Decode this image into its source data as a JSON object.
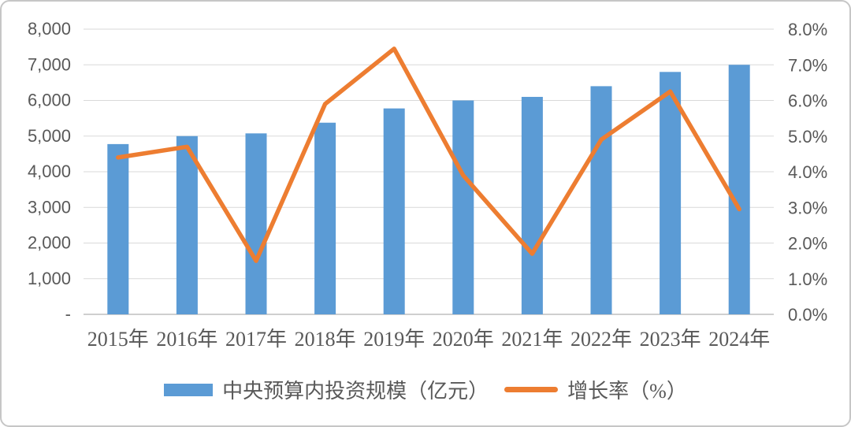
{
  "chart_data": {
    "type": "combo",
    "title": "",
    "categories": [
      "2015年",
      "2016年",
      "2017年",
      "2018年",
      "2019年",
      "2020年",
      "2021年",
      "2022年",
      "2023年",
      "2024年"
    ],
    "series": [
      {
        "name": "中央预算内投资规模（亿元）",
        "type": "bar",
        "axis": "left",
        "values": [
          4776,
          5000,
          5076,
          5376,
          5776,
          6000,
          6100,
          6400,
          6800,
          7000
        ]
      },
      {
        "name": "增长率（%）",
        "type": "line",
        "axis": "right",
        "values": [
          4.4,
          4.7,
          1.5,
          5.9,
          7.45,
          3.9,
          1.7,
          4.9,
          6.25,
          2.95
        ]
      }
    ],
    "left_axis": {
      "min": 0,
      "max": 8000,
      "step": 1000,
      "tick_labels": [
        "-",
        "1,000",
        "2,000",
        "3,000",
        "4,000",
        "5,000",
        "6,000",
        "7,000",
        "8,000"
      ]
    },
    "right_axis": {
      "min": 0,
      "max": 8,
      "step": 1,
      "tick_labels": [
        "0.0%",
        "1.0%",
        "2.0%",
        "3.0%",
        "4.0%",
        "5.0%",
        "6.0%",
        "7.0%",
        "8.0%"
      ]
    },
    "grid": true,
    "legend_position": "bottom"
  },
  "colors": {
    "bar": "#5B9BD5",
    "line": "#ED7D31",
    "grid": "#D9D9D9",
    "axis_line": "#BFBFBF",
    "text": "#595959",
    "border": "#C6C6C6"
  }
}
